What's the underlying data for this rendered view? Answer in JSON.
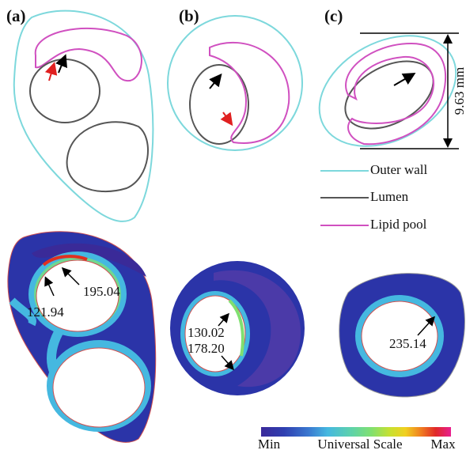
{
  "panels": [
    {
      "label": "(a)"
    },
    {
      "label": "(b)"
    },
    {
      "label": "(c)"
    }
  ],
  "scale_bar": "9.63 mm",
  "legend": [
    "Outer wall",
    "Lumen",
    "Lipid pool"
  ],
  "stress_labels": {
    "a": [
      "195.04",
      "121.94"
    ],
    "b": [
      "130.02",
      "178.20"
    ],
    "c": [
      "235.14"
    ]
  },
  "colorbar": {
    "min": "Min",
    "title": "Universal Scale",
    "max": "Max"
  }
}
